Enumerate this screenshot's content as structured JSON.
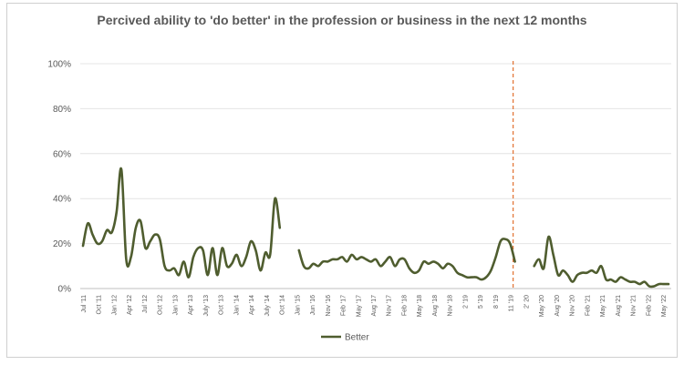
{
  "chart_data": {
    "type": "line",
    "title": "Percived ability to 'do better' in the profession or business in the next 12 months",
    "xlabel": "",
    "ylabel": "",
    "ylim": [
      0,
      100
    ],
    "y_ticks": [
      "0%",
      "20%",
      "40%",
      "60%",
      "80%",
      "100%"
    ],
    "grid": "horizontal",
    "legend_position": "bottom-center",
    "line_color": "#4f5d2f",
    "marker_color": "#e2702f",
    "x_tick_labels": [
      "Jul '11",
      "Oct '11",
      "Jan '12",
      "Apr '12",
      "Jul '12",
      "Oct '12",
      "Jan '13",
      "Apr '13",
      "July '13",
      "Oct '13",
      "Jan '14",
      "Apr '14",
      "July '14",
      "Oct '14",
      "Jan '15",
      "Jun '16",
      "Nov '16",
      "Feb '17",
      "May '17",
      "Aug '17",
      "Nov '17",
      "Feb '18",
      "May '18",
      "Aug '18",
      "Nov '18",
      "2 '19",
      "5 '19",
      "8 '19",
      "11 '19",
      "2' 20",
      "May '20",
      "Aug '20",
      "Nov '20",
      "Feb '21",
      "May '21",
      "Aug '21",
      "Nov '21",
      "Feb '22",
      "May '22"
    ],
    "vertical_marker_label": "11 '19",
    "series": [
      {
        "name": "Better",
        "segments": [
          [
            19,
            29,
            24,
            20,
            21,
            26,
            25,
            34,
            53,
            13,
            14,
            27,
            30,
            18,
            21,
            24,
            22,
            10,
            8,
            9,
            6,
            12,
            5,
            14,
            18,
            17,
            6,
            18,
            6,
            18,
            10,
            11,
            15,
            10,
            14,
            21,
            17,
            8,
            16,
            15,
            40,
            27
          ],
          [
            17,
            10,
            9,
            11,
            10,
            12,
            12,
            13,
            13,
            14,
            12,
            15,
            13,
            14,
            13,
            12,
            13,
            10,
            12,
            14,
            10,
            13,
            13,
            9,
            7,
            8,
            12,
            11,
            12,
            11,
            9,
            11,
            10,
            7,
            6,
            5,
            5,
            5,
            4,
            5,
            8,
            14,
            21,
            22,
            20,
            12
          ],
          [
            10,
            13,
            9,
            23,
            15,
            6,
            8,
            6,
            3,
            6,
            7,
            7,
            8,
            7,
            10,
            4,
            4,
            3,
            5,
            4,
            3,
            3,
            2,
            3,
            1,
            1,
            2,
            2,
            2
          ]
        ]
      }
    ]
  }
}
